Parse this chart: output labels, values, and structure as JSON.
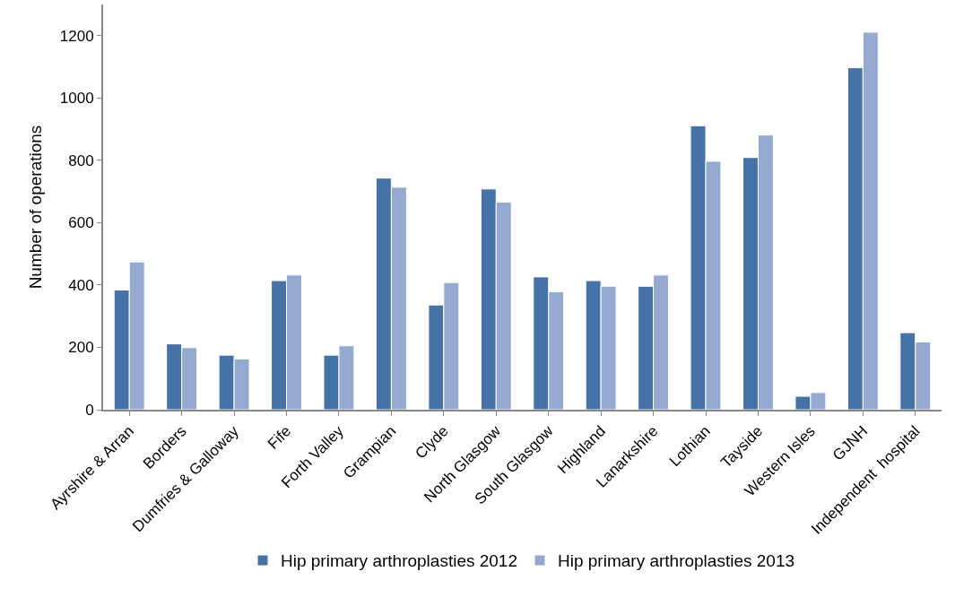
{
  "chart_data": {
    "type": "bar",
    "ylabel": "Number of operations",
    "categories": [
      "Ayrshire & Arran",
      "Borders",
      "Dumfries & Galloway",
      "Fife",
      "Forth Valley",
      "Grampian",
      "Clyde",
      "North Glasgow",
      "South Glasgow",
      "Highland",
      "Lanarkshire",
      "Lothian",
      "Tayside",
      "Western Isles",
      "GJNH",
      "Independent  hospital"
    ],
    "series": [
      {
        "name": "Hip primary arthroplasties 2012",
        "color": "#4672a8",
        "values": [
          384,
          211,
          175,
          414,
          175,
          743,
          336,
          708,
          426,
          414,
          396,
          911,
          809,
          43,
          1097,
          247
        ]
      },
      {
        "name": "Hip primary arthroplasties 2013",
        "color": "#95aad1",
        "values": [
          474,
          199,
          163,
          432,
          205,
          714,
          408,
          666,
          378,
          396,
          432,
          797,
          881,
          55,
          1211,
          217
        ]
      }
    ],
    "ylim": [
      0,
      1300
    ],
    "yticks": [
      0,
      200,
      400,
      600,
      800,
      1000,
      1200
    ],
    "legend": "bottom"
  }
}
